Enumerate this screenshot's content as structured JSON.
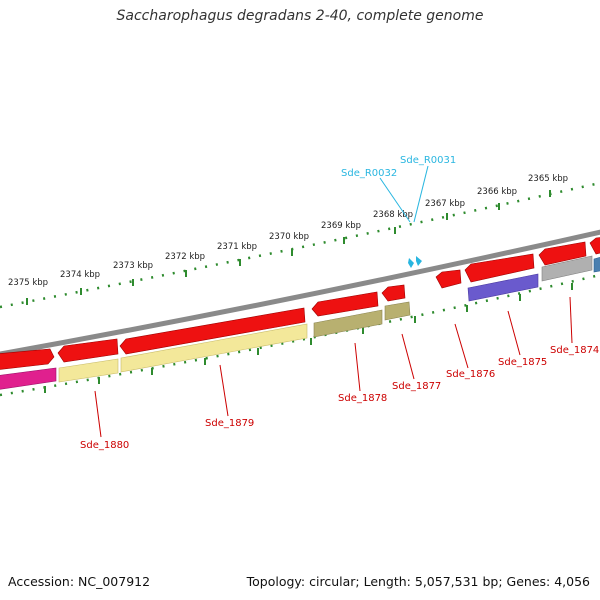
{
  "title": "Saccharophagus degradans 2-40, complete genome",
  "footer": {
    "accession": "Accession: NC_007912",
    "topology": "Topology: circular; Length: 5,057,531 bp; Genes: 4,056"
  },
  "ruler_labels": [
    "2375 kbp",
    "2374 kbp",
    "2373 kbp",
    "2372 kbp",
    "2371 kbp",
    "2370 kbp",
    "2369 kbp",
    "2368 kbp",
    "2367 kbp",
    "2366 kbp",
    "2365 kbp"
  ],
  "gene_labels": [
    "Sde_1880",
    "Sde_1879",
    "Sde_1878",
    "Sde_1877",
    "Sde_1876",
    "Sde_1875",
    "Sde_1874"
  ],
  "rna_labels": [
    "Sde_R0032",
    "Sde_R0031"
  ],
  "colors": {
    "backbone": "#8a8a8a",
    "ruler": "#2e8b2e",
    "cds_forward": "#ee1111",
    "rna": "#29b6e0",
    "label_red": "#cc0000",
    "label_cyan": "#29b6e0",
    "magenta": "#e0208e",
    "pale_yellow": "#f3e89a",
    "olive": "#b8b070",
    "purple": "#6a5acd",
    "gray": "#b0b0b0",
    "steel_blue": "#4a7fb0"
  }
}
